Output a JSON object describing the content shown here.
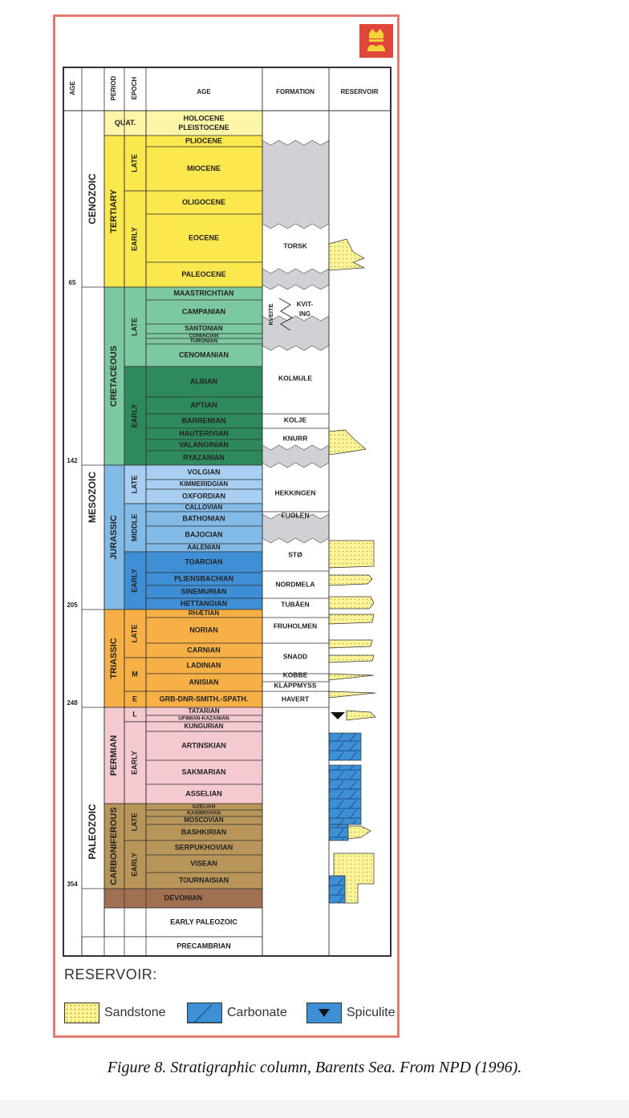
{
  "headers": {
    "age": "AGE",
    "period": "PERIOD",
    "epoch": "EPOCH",
    "age_name": "AGE",
    "formation": "FORMATION",
    "reservoir": "RESERVOIR"
  },
  "eras": [
    {
      "name": "CENOZOIC"
    },
    {
      "name": "MESOZOIC"
    },
    {
      "name": "PALEOZOIC"
    }
  ],
  "age_ticks": [
    "65",
    "142",
    "205",
    "248",
    "354"
  ],
  "periods": [
    "QUAT.",
    "TERTIARY",
    "CRETACEOUS",
    "JURASSIC",
    "TRIASSIC",
    "PERMIAN",
    "CARBONIFEROUS"
  ],
  "epochs": [
    "LATE",
    "EARLY",
    "LATE",
    "EARLY",
    "LATE",
    "MIDDLE",
    "EARLY",
    "LATE",
    "M",
    "E",
    "L",
    "EARLY",
    "LATE",
    "EARLY"
  ],
  "stages": [
    "HOLOCENE",
    "PLEISTOCENE",
    "PLIOCENE",
    "MIOCENE",
    "OLIGOCENE",
    "EOCENE",
    "PALEOCENE",
    "MAASTRICHTIAN",
    "CAMPANIAN",
    "SANTONIAN",
    "CONIACIAN",
    "TURONIAN",
    "CENOMANIAN",
    "ALBIAN",
    "APTIAN",
    "BARREMIAN",
    "HAUTERIVIAN",
    "VALANGINIAN",
    "RYAZANIAN",
    "VOLGIAN",
    "KIMMERIDGIAN",
    "OXFORDIAN",
    "CALLOVIAN",
    "BATHONIAN",
    "BAJOCIAN",
    "AALENIAN",
    "TOARCIAN",
    "PLIENSBACHIAN",
    "SINEMURIAN",
    "HETTANGIAN",
    "RHÆTIAN",
    "NORIAN",
    "CARNIAN",
    "LADINIAN",
    "ANISIAN",
    "GRB-DNR-SMITH.-SPATH.",
    "TATARIAN",
    "UFIMIAN-KAZANIAN",
    "KUNGURIAN",
    "ARTINSKIAN",
    "SAKMARIAN",
    "ASSELIAN",
    "GZELIAN",
    "KASIMOVIAN",
    "MOSCOVIAN",
    "BASHKIRIAN",
    "SERPUKHOVIAN",
    "VISEAN",
    "TOURNAISIAN",
    "DEVONIAN",
    "EARLY PALEOZOIC",
    "PRECAMBRIAN"
  ],
  "formations": [
    "TORSK",
    "KVEITE",
    "KVIT-",
    "ING",
    "KOLMULE",
    "KOLJE",
    "KNURR",
    "HEKKINGEN",
    "FUGLEN",
    "STØ",
    "NORDMELA",
    "TUBÅEN",
    "FRUHOLMEN",
    "SNADD",
    "KOBBE",
    "KLAPPMYSS",
    "HAVERT"
  ],
  "legend": {
    "title": "RESERVOIR:",
    "items": [
      "Sandstone",
      "Carbonate",
      "Spiculite"
    ]
  },
  "caption": "Figure 8. Stratigraphic column, Barents Sea. From NPD (1996).",
  "colors": {
    "quat": "#fdf6a9",
    "tertiary": "#fbe74e",
    "cret_late": "#7cc8a0",
    "cret_early": "#2e8a5c",
    "jur_late": "#a8cff2",
    "jur_mid": "#82bbe8",
    "jur_early": "#3f8fd6",
    "triassic": "#f7b045",
    "permian": "#f4c9cf",
    "carb": "#b8965a",
    "devonian": "#a07050",
    "frame": "#e57a6e",
    "hiatus": "#d0d0d6",
    "sand": "#fbf49a",
    "carbonate": "#3d8fd6"
  }
}
